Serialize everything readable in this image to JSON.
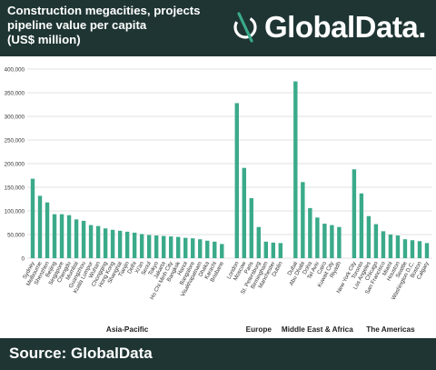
{
  "header": {
    "title_lines": [
      "Construction megacities, projects",
      "pipeline value per capita",
      "(US$ million)"
    ],
    "brand_name": "GlobalData."
  },
  "footer": {
    "source": "Source: GlobalData"
  },
  "colors": {
    "bar": "#3aaa8a",
    "header_bg": "#1e3533",
    "grid": "#d9d9d9",
    "text": "#333333"
  },
  "icons": {
    "brand": "globaldata-logo-icon"
  },
  "chart_data": {
    "type": "bar",
    "ylim": [
      0,
      400000
    ],
    "yticks": [
      "0",
      "50,000",
      "100,000",
      "150,000",
      "200,000",
      "250,000",
      "300,000",
      "350,000",
      "400,000"
    ],
    "grid": true,
    "groups": [
      {
        "name": "Asia-Pacific",
        "categories": [
          "Sydney",
          "Melbourne",
          "Shenzhen",
          "Beijing",
          "Singapore",
          "Chengdu",
          "Mumbai",
          "Guangzhou",
          "Kuala Lumpur",
          "Wuhan",
          "Chongqing",
          "Hong Kong",
          "Shanghai",
          "Tianjin",
          "Delhi",
          "Xi'an",
          "Seoul",
          "Tokyo",
          "Jakarta",
          "Ho Chi Minh City",
          "Bangkok",
          "Hanoi",
          "Bangalore",
          "Visakhapatnam",
          "Dhaka",
          "Karachi",
          "Brisbane"
        ]
      },
      {
        "name": "Europe",
        "categories": [
          "London",
          "Moscow",
          "Paris",
          "St. Petersburg",
          "Birmingham",
          "Manchester",
          "Dublin"
        ]
      },
      {
        "name": "Middle East & Africa",
        "categories": [
          "Dubai",
          "Abu Dhabi",
          "Doha",
          "Tel Aviv",
          "Cairo",
          "Kuwait City",
          "Riyadh"
        ]
      },
      {
        "name": "The Americas",
        "categories": [
          "New York City",
          "Toronto",
          "Los Angeles",
          "Chicago",
          "San Francisco",
          "Miami",
          "Houston",
          "Seattle",
          "Washington D.C.",
          "Boston",
          "Calgary"
        ]
      }
    ],
    "values": [
      168000,
      132000,
      118000,
      93000,
      93000,
      91000,
      82000,
      79000,
      70000,
      68000,
      63000,
      60000,
      58000,
      56000,
      54000,
      51000,
      49000,
      48000,
      47000,
      46000,
      45000,
      43000,
      42000,
      40000,
      37000,
      35000,
      30000,
      328000,
      191000,
      127000,
      66000,
      35000,
      33000,
      32000,
      374000,
      161000,
      106000,
      86000,
      73000,
      70000,
      66000,
      188000,
      137000,
      89000,
      72000,
      57000,
      50000,
      48000,
      40000,
      38000,
      36000,
      32000
    ]
  }
}
